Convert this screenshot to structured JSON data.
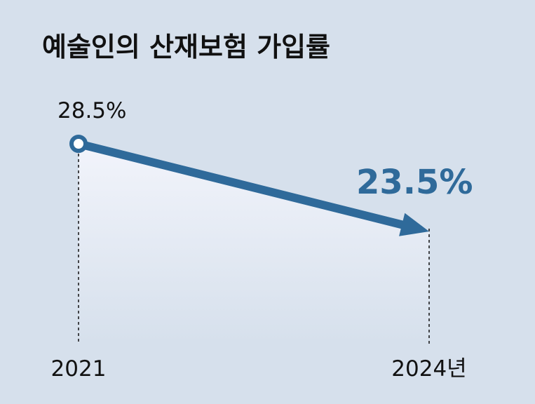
{
  "title": "예술인의 산재보험 가입률",
  "colors": {
    "background": "#d6e0ec",
    "line": "#2f6a9a",
    "accent_label": "#2f6a9a",
    "text": "#111111",
    "area_top": "#f2f4fb",
    "area_bottom": "#d6e0ec"
  },
  "chart_data": {
    "type": "line",
    "title": "예술인의 산재보험 가입률",
    "categories": [
      "2021",
      "2024년"
    ],
    "series": [
      {
        "values": [
          28.5,
          23.5
        ]
      }
    ],
    "data_labels": [
      "28.5%",
      "23.5%"
    ],
    "xlabel": "",
    "ylabel": "",
    "grid": false,
    "legend": "none",
    "start_marker": "hollow-circle",
    "end_marker": "arrowhead"
  }
}
